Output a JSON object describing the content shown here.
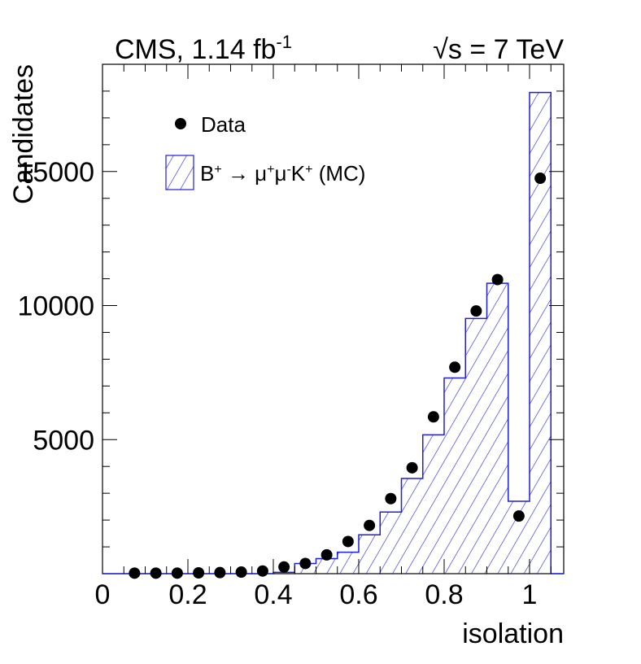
{
  "colors": {
    "mc_line": "#1f1fd6",
    "data_marker": "#000000",
    "axis": "#000000",
    "background": "#ffffff"
  },
  "header": {
    "experiment": "CMS, 1.14 fb",
    "lumi_exponent": "-1",
    "energy_symbol": "√",
    "energy_text": "s = 7 TeV"
  },
  "legend": {
    "data_label": "Data",
    "mc_label_parts": [
      {
        "text": "B",
        "sup": false
      },
      {
        "text": "+",
        "sup": true
      },
      {
        "text": " → μ",
        "sup": false
      },
      {
        "text": "+",
        "sup": true
      },
      {
        "text": "μ",
        "sup": false
      },
      {
        "text": "-",
        "sup": true
      },
      {
        "text": "K",
        "sup": false
      },
      {
        "text": "+",
        "sup": true
      },
      {
        "text": " (MC)",
        "sup": false
      }
    ]
  },
  "chart_data": {
    "type": "histogram",
    "xlabel": "isolation",
    "ylabel": "Candidates",
    "xlim": [
      0,
      1.08
    ],
    "ylim": [
      0,
      19000
    ],
    "x_ticks": [
      0,
      0.2,
      0.4,
      0.6,
      0.8,
      1
    ],
    "x_tick_labels": [
      "0",
      "0.2",
      "0.4",
      "0.6",
      "0.8",
      "1"
    ],
    "y_ticks": [
      5000,
      10000,
      15000
    ],
    "y_tick_labels": [
      "5000",
      "10000",
      "15000"
    ],
    "mc_histogram": {
      "name": "B+ → μ+μ-K+ (MC)",
      "style": "hatched",
      "bin_edges": [
        0,
        0.05,
        0.1,
        0.15,
        0.2,
        0.25,
        0.3,
        0.35,
        0.4,
        0.45,
        0.5,
        0.55,
        0.6,
        0.65,
        0.7,
        0.75,
        0.8,
        0.85,
        0.9,
        0.95,
        1.0,
        1.05
      ],
      "values": [
        0,
        0,
        0,
        0,
        0,
        0,
        0,
        0,
        50,
        380,
        560,
        800,
        1450,
        2300,
        3550,
        5180,
        7300,
        9520,
        10830,
        2700,
        17950
      ]
    },
    "data_points": {
      "name": "Data",
      "x": [
        0.075,
        0.125,
        0.175,
        0.225,
        0.275,
        0.325,
        0.375,
        0.425,
        0.475,
        0.525,
        0.575,
        0.625,
        0.675,
        0.725,
        0.775,
        0.825,
        0.875,
        0.925,
        0.975,
        1.025
      ],
      "y": [
        20,
        20,
        20,
        30,
        40,
        60,
        100,
        250,
        380,
        700,
        1200,
        1800,
        2800,
        3950,
        5850,
        7700,
        9800,
        10970,
        2150,
        14750
      ]
    }
  }
}
